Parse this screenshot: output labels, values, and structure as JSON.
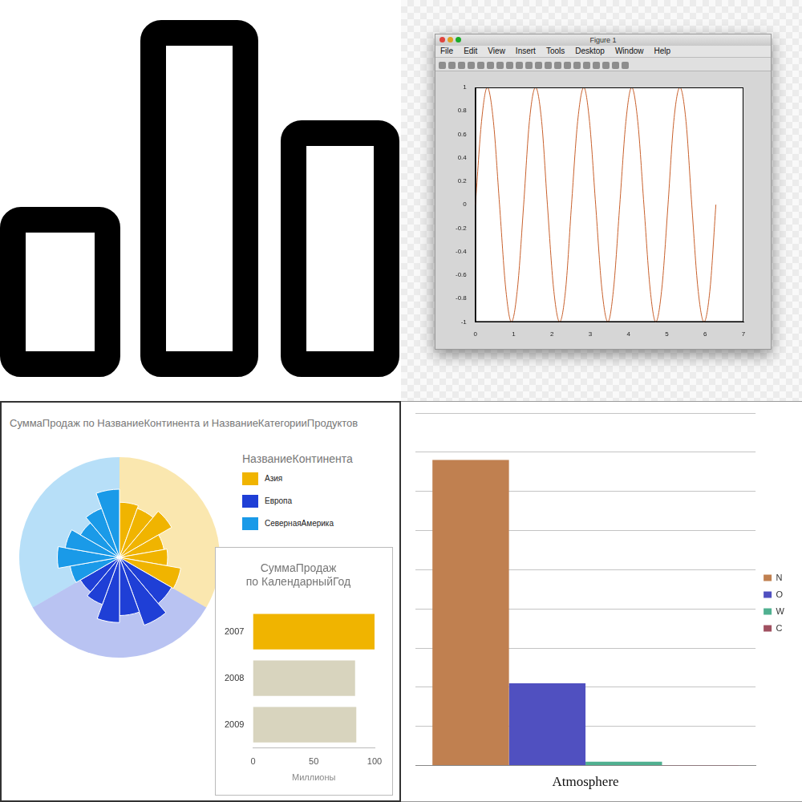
{
  "figure_window": {
    "title": "Figure 1",
    "menu": [
      "File",
      "Edit",
      "View",
      "Insert",
      "Tools",
      "Desktop",
      "Window",
      "Help"
    ]
  },
  "chart_data": [
    {
      "type": "line",
      "x": [
        0,
        0.16,
        0.31,
        0.47,
        0.63,
        0.79,
        0.94,
        1.1,
        1.26,
        1.41,
        1.57,
        1.73,
        1.88,
        2.04,
        2.2,
        2.36,
        2.51,
        2.67,
        2.83,
        2.98,
        3.14,
        3.3,
        3.46,
        3.61,
        3.77,
        3.93,
        4.08,
        4.24,
        4.4,
        4.56,
        4.71,
        4.87,
        5.03,
        5.18,
        5.34,
        5.5,
        5.65,
        5.81,
        5.97,
        6.13,
        6.28
      ],
      "values": [
        0,
        0.71,
        1,
        0.71,
        0,
        -0.71,
        -1,
        -0.71,
        0,
        0.71,
        1,
        0.71,
        0,
        -0.71,
        -1,
        -0.71,
        0,
        0.71,
        1,
        0.71,
        0,
        -0.71,
        -1,
        -0.71,
        0,
        0.71,
        1,
        0.71,
        0,
        -0.71,
        -1,
        -0.71,
        0,
        0.71,
        1,
        0.71,
        0,
        -0.71,
        -1,
        -0.71,
        0
      ],
      "color": "#c8602c",
      "xlim": [
        0,
        7
      ],
      "xticks": [
        0,
        1,
        2,
        3,
        4,
        5,
        6,
        7
      ],
      "ylim": [
        -1,
        1
      ],
      "yticks": [
        -1,
        -0.8,
        -0.6,
        -0.4,
        -0.2,
        0,
        0.2,
        0.4,
        0.6,
        0.8,
        1
      ],
      "grid": false
    },
    {
      "type": "polarArea",
      "title": "СуммаПродаж по НазваниеКонтинента и НазваниеКатегорииПродуктов",
      "legend_title": "НазваниеКонтинента",
      "legend": "right",
      "series": [
        {
          "name": "Азия",
          "color": "#f0b400",
          "values": [
            55,
            52,
            60,
            45,
            48,
            62
          ]
        },
        {
          "name": "Европа",
          "color": "#1f3fd6",
          "values": [
            60,
            72,
            58,
            65,
            50,
            45
          ]
        },
        {
          "name": "СевернаяАмерика",
          "color": "#1a9ae8",
          "values": [
            50,
            62,
            55,
            45,
            52,
            68
          ]
        }
      ],
      "ylim": [
        0,
        100
      ],
      "tick_labels": false
    },
    {
      "type": "bar",
      "orientation": "horizontal",
      "title": [
        "СуммаПродаж",
        "по КалендарныйГод"
      ],
      "categories": [
        "2007",
        "2008",
        "2009"
      ],
      "values": [
        100,
        84,
        85
      ],
      "colors": [
        "#f0b400",
        "#d8d4be",
        "#d8d4be"
      ],
      "xlim": [
        0,
        100
      ],
      "xticks": [
        0,
        50,
        100
      ],
      "xlabel": "Миллионы",
      "grid": false
    },
    {
      "type": "bar",
      "categories": [
        "Atmosphere"
      ],
      "series": [
        {
          "name": "N",
          "color": "#c08050",
          "values": [
            78
          ]
        },
        {
          "name": "O",
          "color": "#5050c0",
          "values": [
            21
          ]
        },
        {
          "name": "W",
          "color": "#50b090",
          "values": [
            1
          ]
        },
        {
          "name": "C",
          "color": "#a05060",
          "values": [
            0.04
          ]
        }
      ],
      "ylim": [
        0,
        90
      ],
      "yticks": [
        0,
        10,
        20,
        30,
        40,
        50,
        60,
        70,
        80,
        90
      ],
      "grid": true,
      "legend": "right",
      "tick_labels": "x"
    }
  ]
}
